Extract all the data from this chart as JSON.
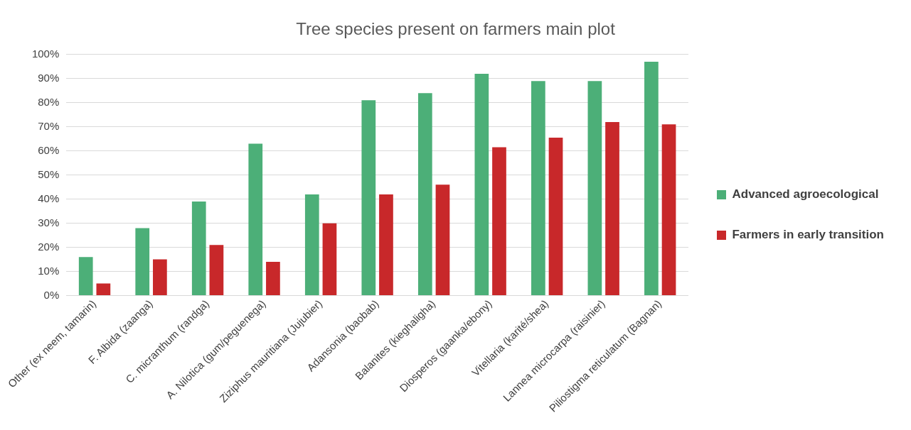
{
  "chart_data": {
    "type": "bar",
    "title": "Tree species present on farmers main plot",
    "categories": [
      "Other (ex neem, tamarin)",
      "F. Albida (zaanga)",
      "C. micranthum (randga)",
      "A. Nilotica (gum/peguenega)",
      "Ziziphus mauritiana (Jujubier)",
      "Adansonia (baobab)",
      "Balanites (kieghaligha)",
      "Diosperos (gaanka/ebony)",
      "Vitellaria (karité/shea)",
      "Lannea microcarpa (raisinier)",
      "Piliostigma reticulatum (Bagnan)"
    ],
    "series": [
      {
        "name": "Advanced agroecological",
        "color": "#4caf78",
        "values": [
          16,
          28,
          39,
          63,
          42,
          81,
          84,
          92,
          89,
          89,
          97
        ]
      },
      {
        "name": "Farmers in early transition",
        "color": "#c8282a",
        "values": [
          5,
          15,
          21,
          14,
          30,
          42,
          46,
          61.5,
          65.5,
          72,
          71
        ]
      }
    ],
    "ylim": [
      0,
      100
    ],
    "yticks": [
      {
        "value": 0,
        "label": "0%"
      },
      {
        "value": 10,
        "label": "10%"
      },
      {
        "value": 20,
        "label": "20%"
      },
      {
        "value": 30,
        "label": "30%"
      },
      {
        "value": 40,
        "label": "40%"
      },
      {
        "value": 50,
        "label": "50%"
      },
      {
        "value": 60,
        "label": "60%"
      },
      {
        "value": 70,
        "label": "70%"
      },
      {
        "value": 80,
        "label": "80%"
      },
      {
        "value": 90,
        "label": "90%"
      },
      {
        "value": 100,
        "label": "100%"
      }
    ],
    "grid": "y",
    "legend": "right"
  }
}
